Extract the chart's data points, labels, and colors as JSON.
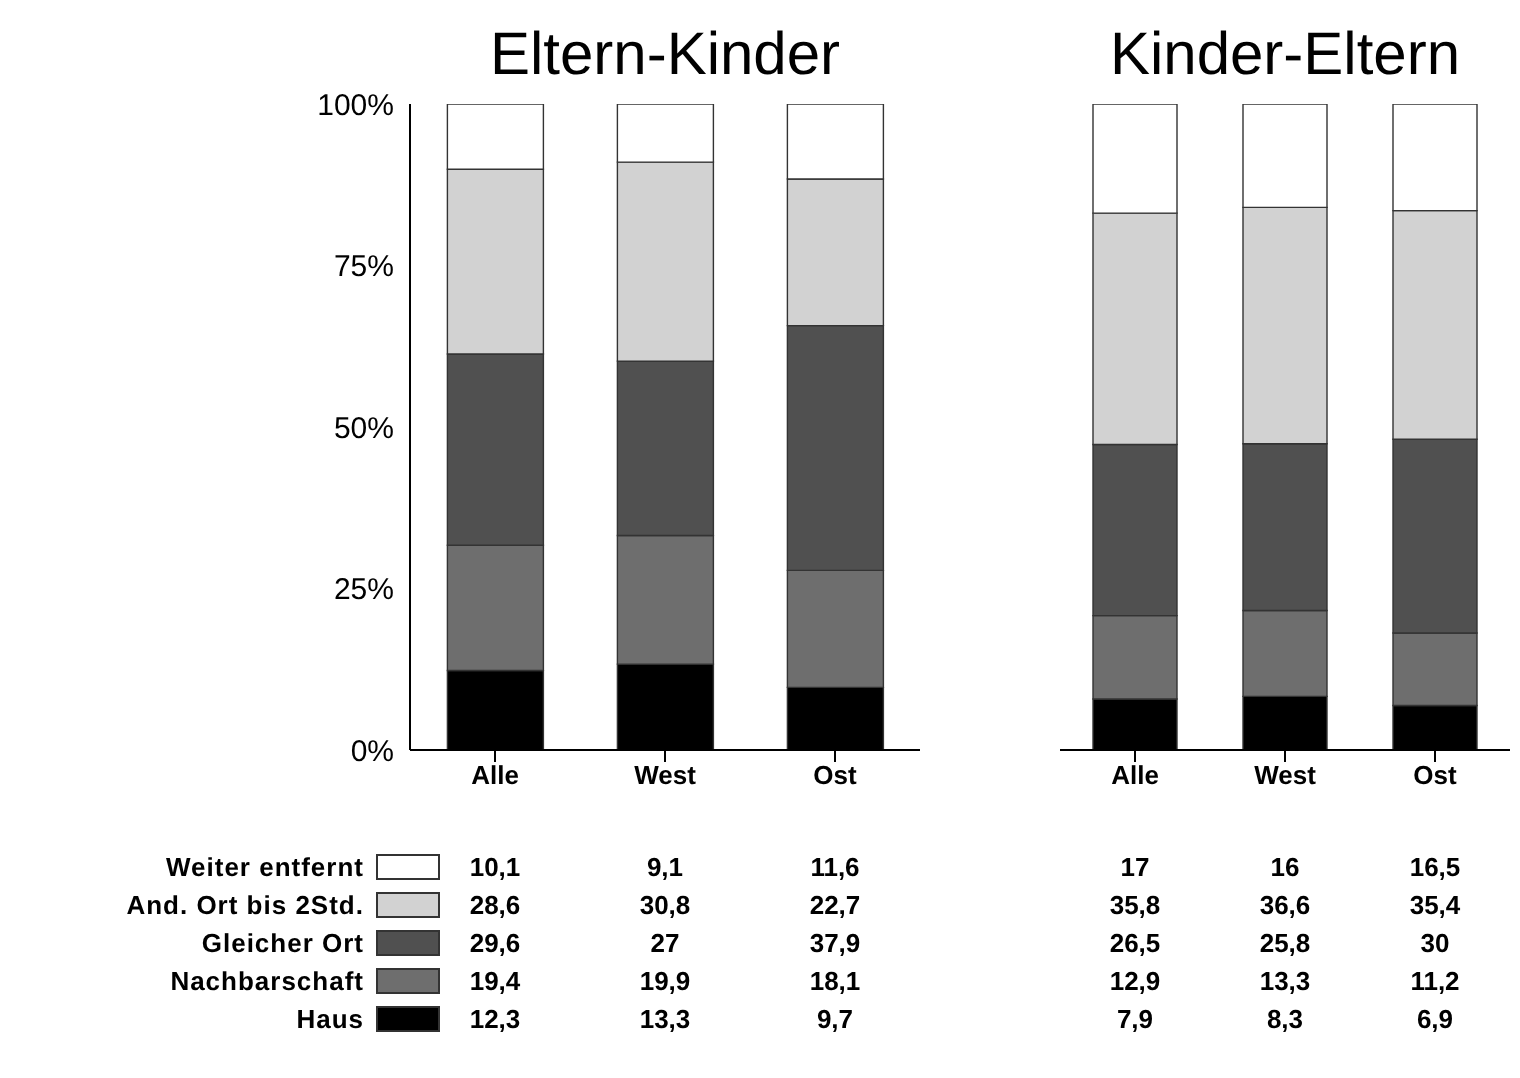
{
  "chart_data": [
    {
      "type": "bar",
      "title": "Eltern-Kinder",
      "categories": [
        "Alle",
        "West",
        "Ost"
      ],
      "stacked": true,
      "ylim": [
        0,
        100
      ],
      "yticks": [
        {
          "value": 0,
          "label": "0%"
        },
        {
          "value": 25,
          "label": "25%"
        },
        {
          "value": 50,
          "label": "50%"
        },
        {
          "value": 75,
          "label": "75%"
        },
        {
          "value": 100,
          "label": "100%"
        }
      ],
      "legend": "bottom",
      "series": [
        {
          "name": "Haus",
          "color": "#000000",
          "values": [
            12.3,
            13.3,
            9.7
          ],
          "value_labels": [
            "12,3",
            "13,3",
            "9,7"
          ]
        },
        {
          "name": "Nachbarschaft",
          "color": "#6e6e6e",
          "values": [
            19.4,
            19.9,
            18.1
          ],
          "value_labels": [
            "19,4",
            "19,9",
            "18,1"
          ]
        },
        {
          "name": "Gleicher Ort",
          "color": "#505050",
          "values": [
            29.6,
            27,
            37.9
          ],
          "value_labels": [
            "29,6",
            "27",
            "37,9"
          ]
        },
        {
          "name": "And. Ort bis 2Std.",
          "color": "#d2d2d2",
          "values": [
            28.6,
            30.8,
            22.7
          ],
          "value_labels": [
            "28,6",
            "30,8",
            "22,7"
          ]
        },
        {
          "name": "Weiter entfernt",
          "color": "#ffffff",
          "values": [
            10.1,
            9.1,
            11.6
          ],
          "value_labels": [
            "10,1",
            "9,1",
            "11,6"
          ]
        }
      ]
    },
    {
      "type": "bar",
      "title": "Kinder-Eltern",
      "categories": [
        "Alle",
        "West",
        "Ost"
      ],
      "stacked": true,
      "ylim": [
        0,
        100
      ],
      "tick_labels": "x",
      "series": [
        {
          "color": "#000000",
          "values": [
            7.9,
            8.3,
            6.9
          ],
          "value_labels": [
            "7,9",
            "8,3",
            "6,9"
          ]
        },
        {
          "color": "#6e6e6e",
          "values": [
            12.9,
            13.3,
            11.2
          ],
          "value_labels": [
            "12,9",
            "13,3",
            "11,2"
          ]
        },
        {
          "color": "#505050",
          "values": [
            26.5,
            25.8,
            30
          ],
          "value_labels": [
            "26,5",
            "25,8",
            "30"
          ]
        },
        {
          "color": "#d2d2d2",
          "values": [
            35.8,
            36.6,
            35.4
          ],
          "value_labels": [
            "35,8",
            "36,6",
            "35,4"
          ]
        },
        {
          "color": "#ffffff",
          "values": [
            17,
            16,
            16.5
          ],
          "value_labels": [
            "17",
            "16",
            "16,5"
          ]
        }
      ]
    }
  ]
}
